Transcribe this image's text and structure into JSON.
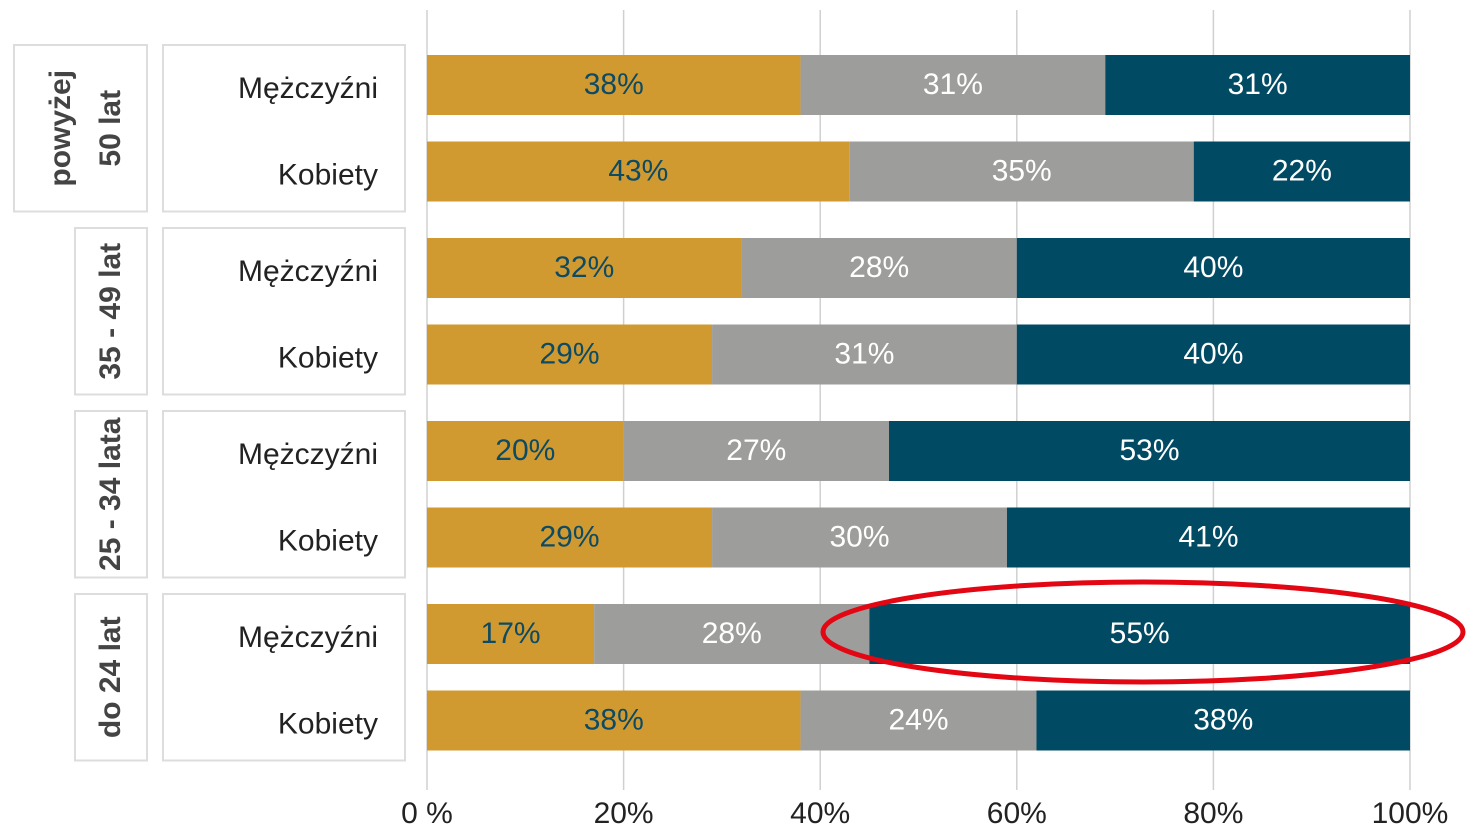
{
  "chart_data": {
    "type": "stacked_barh",
    "groups": [
      [
        "powyżej",
        "50 lat"
      ],
      [
        "35 - 49 lat"
      ],
      [
        "25 - 34 lata"
      ],
      [
        "do 24 lat"
      ]
    ],
    "categories": [
      "Mężczyźni",
      "Kobiety",
      "Mężczyźni",
      "Kobiety",
      "Mężczyźni",
      "Kobiety",
      "Mężczyźni",
      "Kobiety"
    ],
    "series": [
      {
        "color": "#d19a31",
        "label_color": "#0d4a63",
        "values": [
          38,
          43,
          32,
          29,
          20,
          29,
          17,
          38
        ],
        "value_labels": [
          "38%",
          "43%",
          "32%",
          "29%",
          "20%",
          "29%",
          "17%",
          "38%"
        ]
      },
      {
        "color": "#9d9d9b",
        "label_color": "#ffffff",
        "values": [
          31,
          35,
          28,
          31,
          27,
          30,
          28,
          24
        ],
        "value_labels": [
          "31%",
          "35%",
          "28%",
          "31%",
          "27%",
          "30%",
          "28%",
          "24%"
        ]
      },
      {
        "color": "#004a63",
        "label_color": "#ffffff",
        "values": [
          31,
          22,
          40,
          40,
          53,
          41,
          55,
          38
        ],
        "value_labels": [
          "31%",
          "22%",
          "40%",
          "40%",
          "53%",
          "41%",
          "55%",
          "38%"
        ]
      }
    ],
    "xlim": [
      0,
      100
    ],
    "xticks": [
      {
        "value": 0,
        "label": "0 %"
      },
      {
        "value": 20,
        "label": "20%"
      },
      {
        "value": 40,
        "label": "40%"
      },
      {
        "value": 60,
        "label": "60%"
      },
      {
        "value": 80,
        "label": "80%"
      },
      {
        "value": 100,
        "label": "100%"
      }
    ],
    "grid": true
  }
}
